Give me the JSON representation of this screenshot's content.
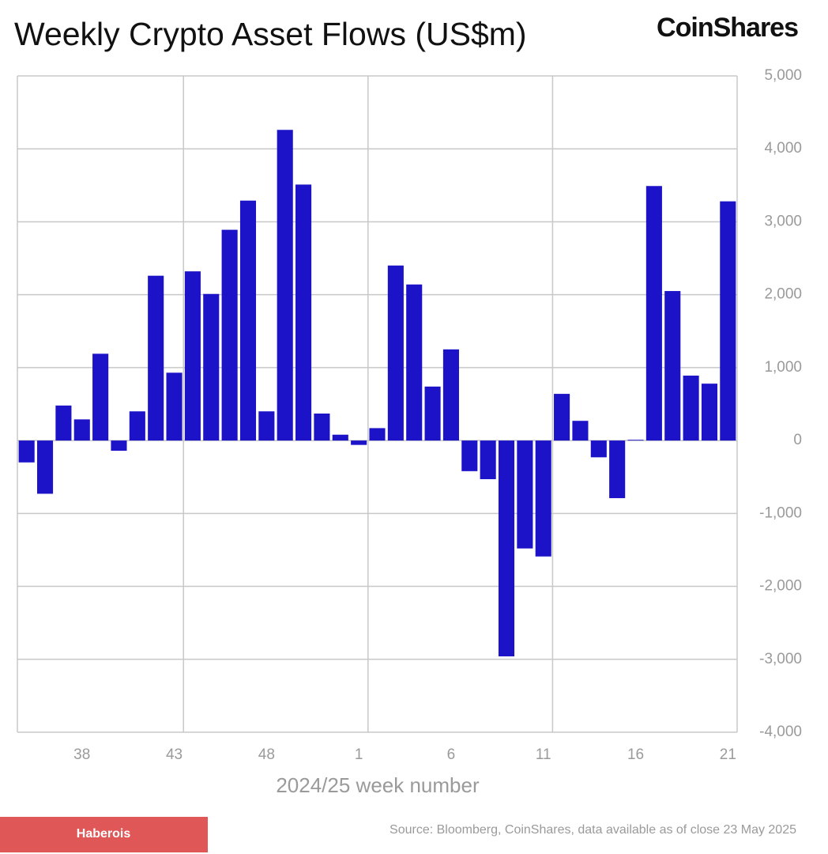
{
  "chart_data": {
    "type": "bar",
    "title": "Weekly Crypto Asset Flows (US$m)",
    "logo": "CoinShares",
    "x_label": "2024/25 week number",
    "source": "Source: Bloomberg, CoinShares, data available as of close 23 May 2025",
    "watermark": "Haberois",
    "color": "#1c12c8",
    "grid": true,
    "categories": [
      null,
      null,
      null,
      "38",
      null,
      null,
      null,
      null,
      "43",
      null,
      null,
      null,
      null,
      "48",
      null,
      null,
      null,
      null,
      "1",
      null,
      null,
      null,
      null,
      "6",
      null,
      null,
      null,
      null,
      "11",
      null,
      null,
      null,
      null,
      "16",
      null,
      null,
      null,
      null,
      "21"
    ],
    "values": [
      -300,
      -730,
      480,
      290,
      1190,
      -140,
      400,
      2260,
      930,
      2320,
      2010,
      2890,
      3290,
      400,
      4260,
      3510,
      370,
      80,
      -60,
      170,
      2400,
      2140,
      740,
      1250,
      -420,
      -530,
      -2960,
      -1480,
      -1590,
      640,
      270,
      -230,
      -790,
      10,
      3490,
      2050,
      890,
      780,
      3280
    ],
    "ylim": [
      -4000,
      5000
    ],
    "yticks": [
      {
        "value": -4000,
        "label": "-4,000"
      },
      {
        "value": -3000,
        "label": "-3,000"
      },
      {
        "value": -2000,
        "label": "-2,000"
      },
      {
        "value": -1000,
        "label": "-1,000"
      },
      0,
      {
        "value": 1000,
        "label": "1,000"
      },
      {
        "value": 2000,
        "label": "2,000"
      },
      {
        "value": 3000,
        "label": "3,000"
      },
      {
        "value": 4000,
        "label": "4,000"
      },
      {
        "value": 5000,
        "label": "5,000"
      }
    ]
  }
}
